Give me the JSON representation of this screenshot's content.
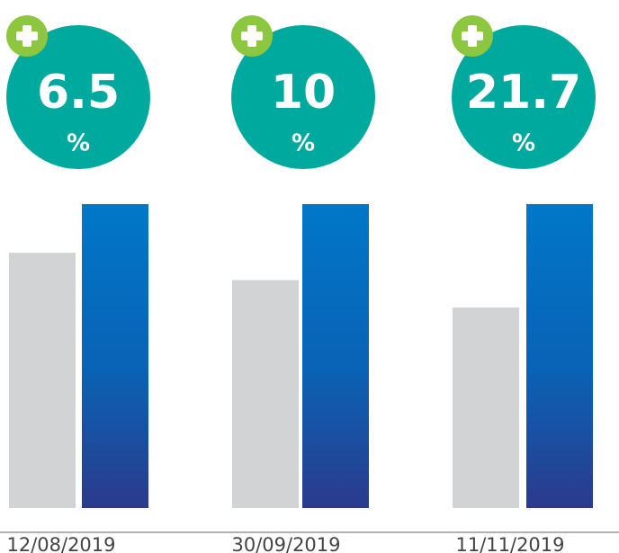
{
  "chart_data": {
    "type": "bar",
    "categories": [
      "12/08/2019",
      "30/09/2019",
      "11/11/2019"
    ],
    "series": [
      {
        "color": "#d1d3d4",
        "values": [
          84,
          75,
          66
        ]
      },
      {
        "color": "#0a6fc2",
        "values": [
          100,
          100,
          100
        ]
      }
    ],
    "annotations": [
      "6.5",
      "10",
      "21.7"
    ],
    "annotation_unit": "%"
  }
}
